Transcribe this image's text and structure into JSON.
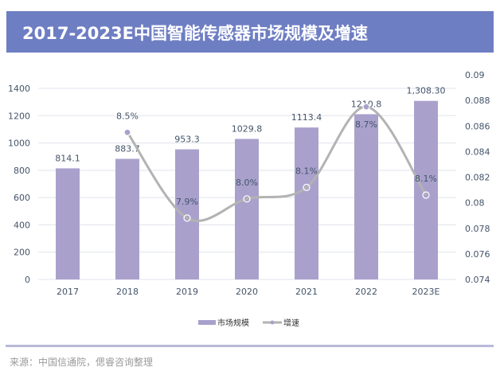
{
  "title": "2017-2023E中国智能传感器市场规模及增速",
  "source": "来源：中国信通院，偲睿咨询整理",
  "colors": {
    "title_bg": "#6e7ec3",
    "bar": "#a9a1cc",
    "line": "#b3b3b3",
    "marker": "#a9a1cc"
  },
  "chart_data": {
    "type": "bar+line",
    "categories": [
      "2017",
      "2018",
      "2019",
      "2020",
      "2021",
      "2022",
      "2023E"
    ],
    "series": [
      {
        "name": "市场规模",
        "type": "bar",
        "axis": "left",
        "values": [
          814.1,
          883.7,
          953.3,
          1029.8,
          1113.4,
          1210.8,
          1308.3
        ],
        "labels": [
          "814.1",
          "883.7",
          "953.3",
          "1029.8",
          "1113.4",
          "1210.8",
          "1,308.30"
        ]
      },
      {
        "name": "增速",
        "type": "line",
        "axis": "right",
        "values": [
          null,
          0.0855,
          0.0788,
          0.0803,
          0.0812,
          0.0875,
          0.0806
        ],
        "labels": [
          "",
          "8.5%",
          "7.9%",
          "8.0%",
          "8.1%",
          "8.7%",
          "8.1%"
        ]
      }
    ],
    "left_axis": {
      "min": 0,
      "max": 1400,
      "ticks": [
        "0",
        "200",
        "400",
        "600",
        "800",
        "1000",
        "1200",
        "1400"
      ]
    },
    "right_axis": {
      "min": 0.074,
      "max": 0.09,
      "ticks": [
        "0.074",
        "0.076",
        "0.078",
        "0.08",
        "0.082",
        "0.084",
        "0.086",
        "0.088",
        "0.09"
      ]
    },
    "grid": true,
    "legend": "bottom"
  }
}
